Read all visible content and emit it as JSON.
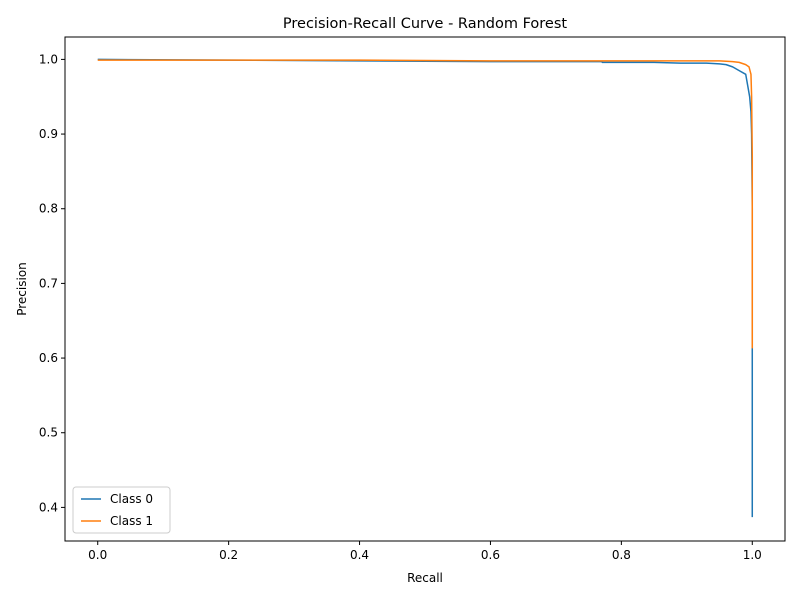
{
  "chart_data": {
    "type": "line",
    "title": "Precision-Recall Curve - Random Forest",
    "xlabel": "Recall",
    "ylabel": "Precision",
    "xlim": [
      -0.05,
      1.05
    ],
    "ylim": [
      0.355,
      1.03
    ],
    "xticks": [
      0.0,
      0.2,
      0.4,
      0.6,
      0.8,
      1.0
    ],
    "xtick_labels": [
      "0.0",
      "0.2",
      "0.4",
      "0.6",
      "0.8",
      "1.0"
    ],
    "yticks": [
      0.4,
      0.5,
      0.6,
      0.7,
      0.8,
      0.9,
      1.0
    ],
    "ytick_labels": [
      "0.4",
      "0.5",
      "0.6",
      "0.7",
      "0.8",
      "0.9",
      "1.0"
    ],
    "grid": false,
    "legend_position": "lower-left",
    "series": [
      {
        "name": "Class 0",
        "color": "#1f77b4",
        "x": [
          0.0,
          0.2,
          0.4,
          0.6,
          0.77,
          0.771,
          0.85,
          0.89,
          0.93,
          0.95,
          0.96,
          0.97,
          0.98,
          0.99,
          0.993,
          0.996,
          0.998,
          0.999,
          1.0,
          1.0
        ],
        "y": [
          1.0,
          0.999,
          0.998,
          0.997,
          0.997,
          0.996,
          0.996,
          0.995,
          0.995,
          0.994,
          0.993,
          0.99,
          0.985,
          0.98,
          0.965,
          0.95,
          0.93,
          0.9,
          0.8,
          0.387
        ]
      },
      {
        "name": "Class 1",
        "color": "#ff7f0e",
        "x": [
          0.0,
          0.2,
          0.4,
          0.6,
          0.77,
          0.8,
          0.9,
          0.95,
          0.97,
          0.98,
          0.99,
          0.995,
          0.998,
          0.999,
          1.0,
          1.0
        ],
        "y": [
          0.999,
          0.999,
          0.999,
          0.998,
          0.998,
          0.998,
          0.998,
          0.998,
          0.997,
          0.996,
          0.993,
          0.99,
          0.98,
          0.95,
          0.87,
          0.613
        ]
      }
    ]
  }
}
